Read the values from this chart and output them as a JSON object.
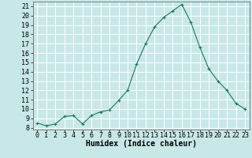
{
  "x": [
    0,
    1,
    2,
    3,
    4,
    5,
    6,
    7,
    8,
    9,
    10,
    11,
    12,
    13,
    14,
    15,
    16,
    17,
    18,
    19,
    20,
    21,
    22,
    23
  ],
  "y": [
    8.5,
    8.2,
    8.4,
    9.2,
    9.3,
    8.4,
    9.3,
    9.7,
    9.9,
    10.9,
    12.0,
    14.8,
    17.0,
    18.8,
    19.8,
    20.5,
    21.2,
    19.3,
    16.6,
    14.3,
    13.0,
    12.0,
    10.6,
    10.0
  ],
  "line_color": "#1a7a5a",
  "marker": "+",
  "marker_color": "#1a7a5a",
  "bg_color": "#c8e8e8",
  "grid_color": "#ffffff",
  "xlabel": "Humidex (Indice chaleur)",
  "xlim": [
    -0.5,
    23.5
  ],
  "ylim": [
    7.8,
    21.5
  ],
  "yticks": [
    8,
    9,
    10,
    11,
    12,
    13,
    14,
    15,
    16,
    17,
    18,
    19,
    20,
    21
  ],
  "xticks": [
    0,
    1,
    2,
    3,
    4,
    5,
    6,
    7,
    8,
    9,
    10,
    11,
    12,
    13,
    14,
    15,
    16,
    17,
    18,
    19,
    20,
    21,
    22,
    23
  ],
  "label_fontsize": 7,
  "tick_fontsize": 6
}
